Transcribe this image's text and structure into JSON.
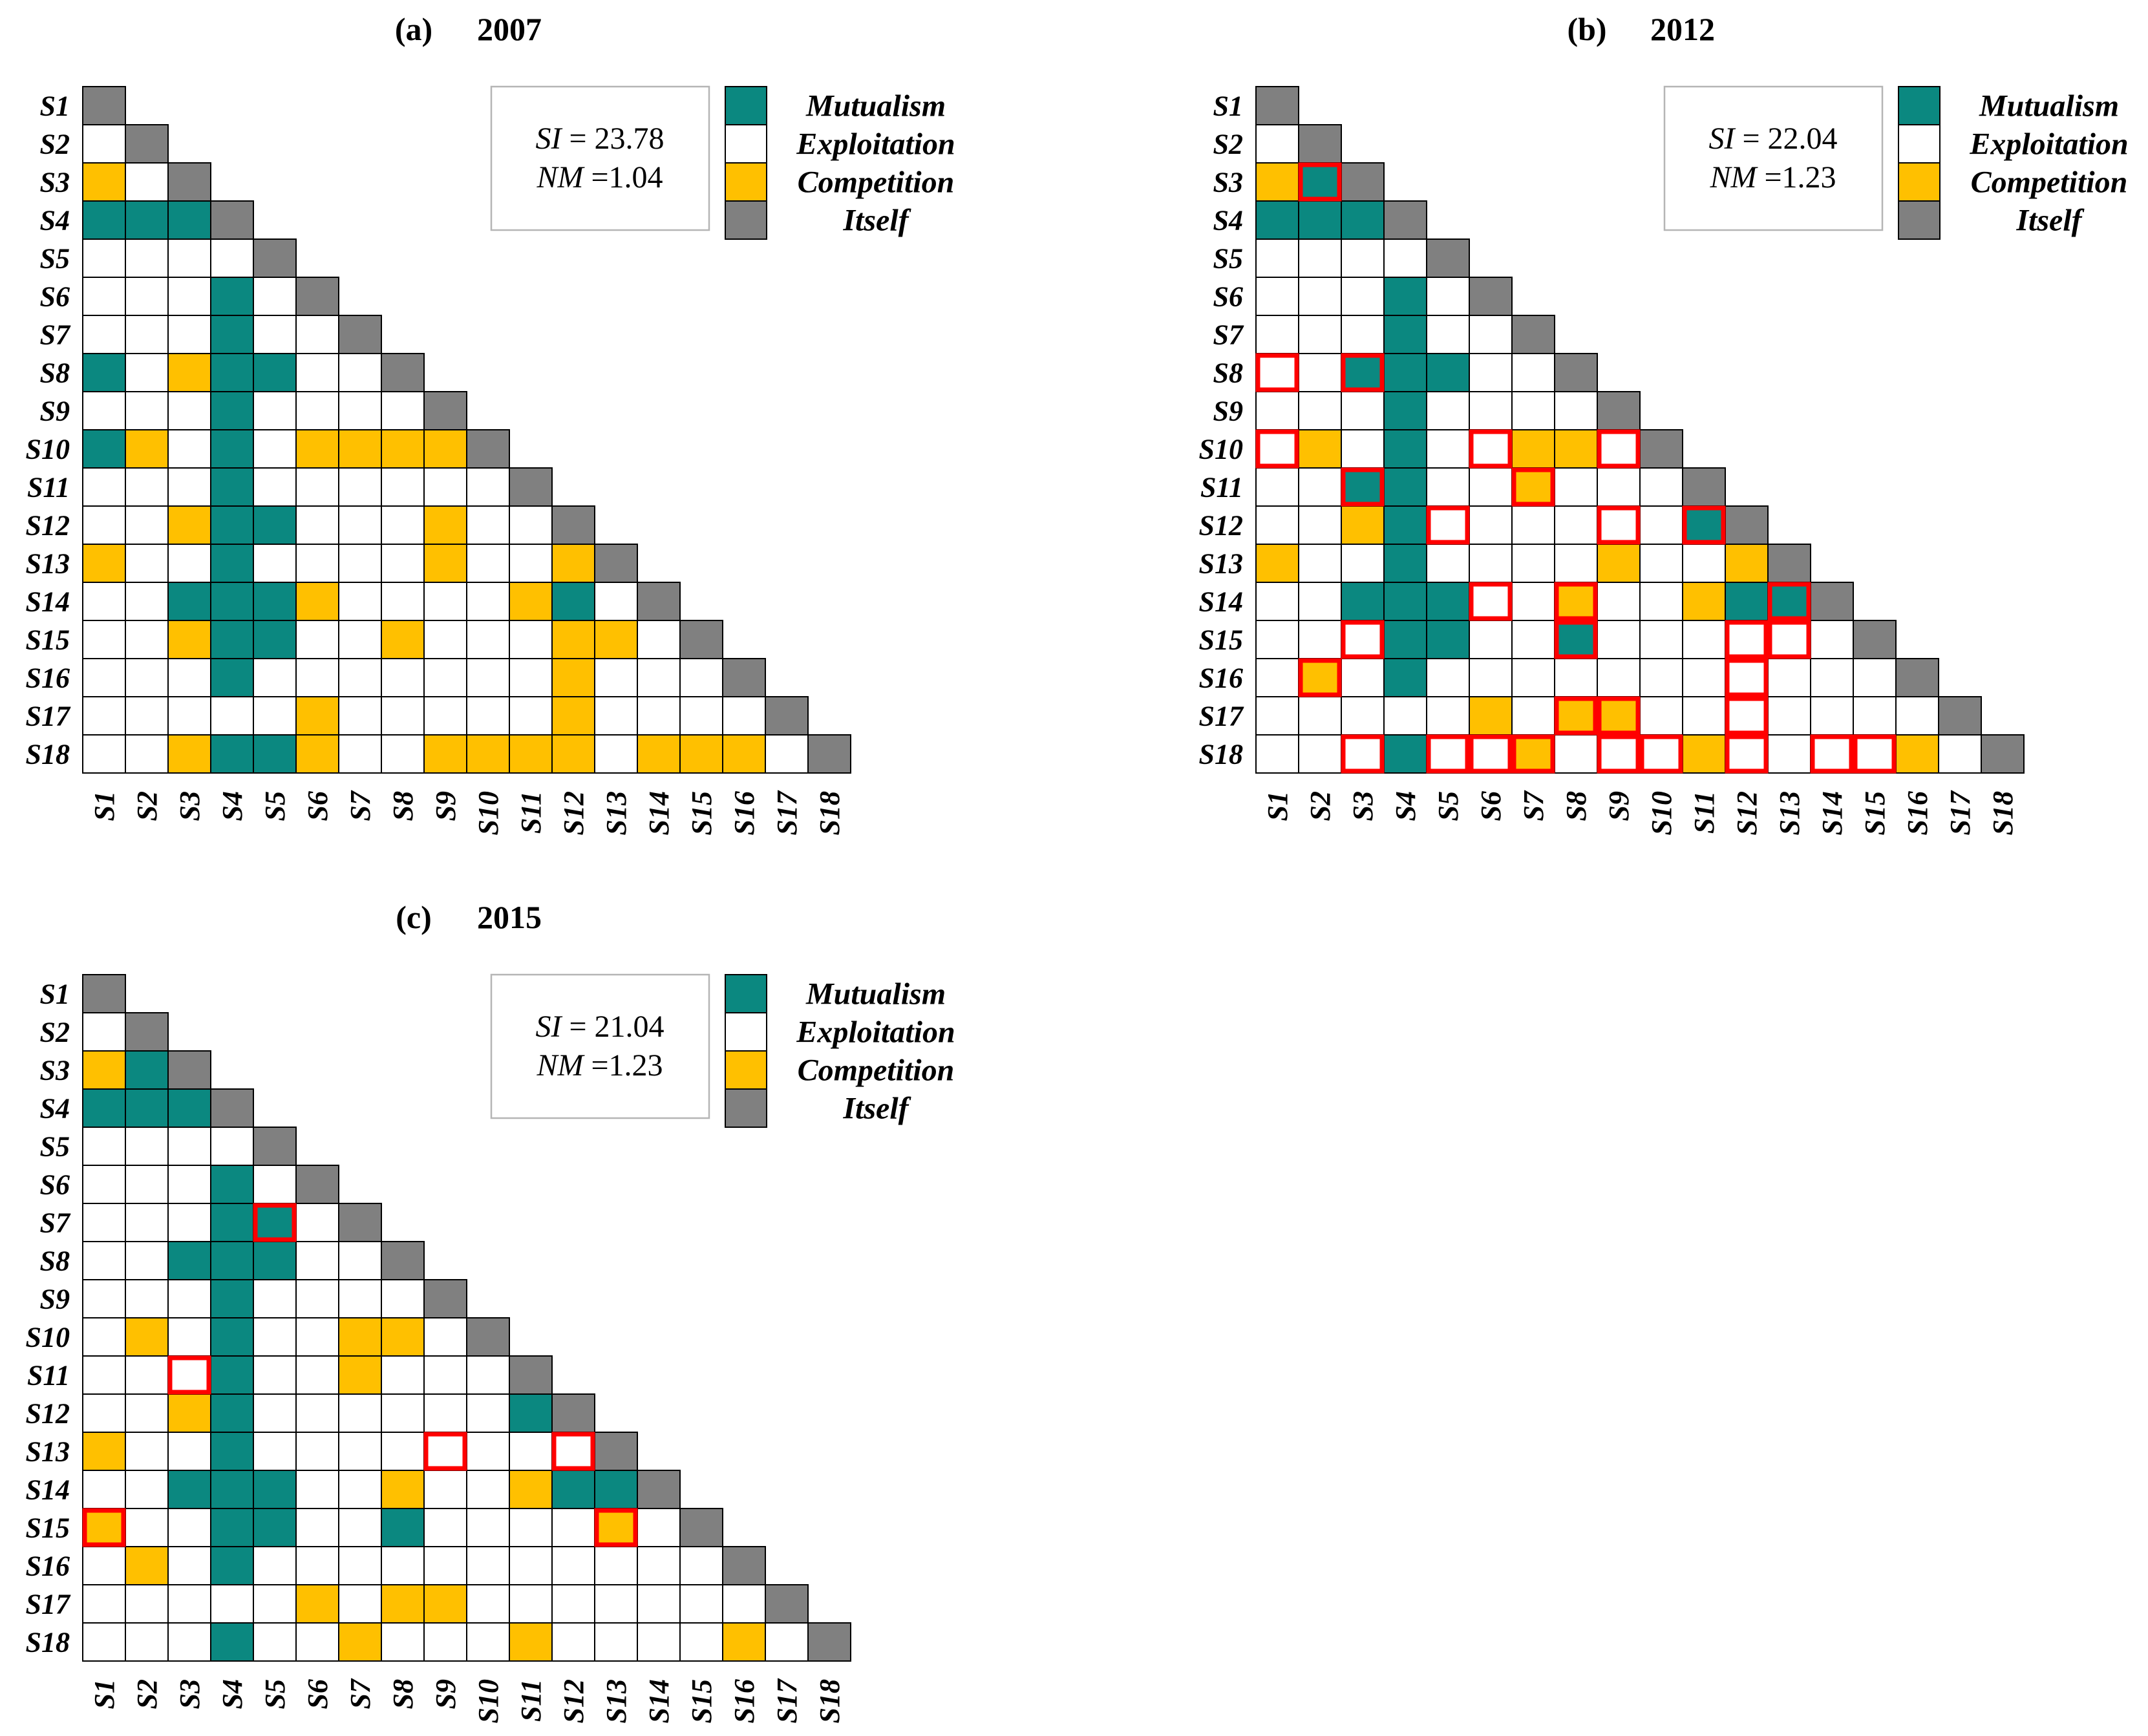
{
  "chart_data": {
    "type": "heatmap",
    "species": [
      "S1",
      "S2",
      "S3",
      "S4",
      "S5",
      "S6",
      "S7",
      "S8",
      "S9",
      "S10",
      "S11",
      "S12",
      "S13",
      "S14",
      "S15",
      "S16",
      "S17",
      "S18"
    ],
    "legend": [
      {
        "label": "Mutualism",
        "color": "#0b8880"
      },
      {
        "label": "Exploitation",
        "color": "#ffffff"
      },
      {
        "label": "Competition",
        "color": "#ffc000"
      },
      {
        "label": "Itself",
        "color": "#808080"
      }
    ],
    "highlight_color": "#ff0000",
    "panels": [
      {
        "label": "(a)",
        "year": "2007",
        "si": {
          "symbol": "SI",
          "text": " = 23.78"
        },
        "nm": {
          "symbol": "NM",
          "text": " =1.04"
        },
        "matrix": [
          [
            3
          ],
          [
            1,
            3
          ],
          [
            2,
            1,
            3
          ],
          [
            0,
            0,
            0,
            3
          ],
          [
            1,
            1,
            1,
            1,
            3
          ],
          [
            1,
            1,
            1,
            0,
            1,
            3
          ],
          [
            1,
            1,
            1,
            0,
            1,
            1,
            3
          ],
          [
            0,
            1,
            2,
            0,
            0,
            1,
            1,
            3
          ],
          [
            1,
            1,
            1,
            0,
            1,
            1,
            1,
            1,
            3
          ],
          [
            0,
            2,
            1,
            0,
            1,
            2,
            2,
            2,
            2,
            3
          ],
          [
            1,
            1,
            1,
            0,
            1,
            1,
            1,
            1,
            1,
            1,
            3
          ],
          [
            1,
            1,
            2,
            0,
            0,
            1,
            1,
            1,
            2,
            1,
            1,
            3
          ],
          [
            2,
            1,
            1,
            0,
            1,
            1,
            1,
            1,
            2,
            1,
            1,
            2,
            3
          ],
          [
            1,
            1,
            0,
            0,
            0,
            2,
            1,
            1,
            1,
            1,
            2,
            0,
            1,
            3
          ],
          [
            1,
            1,
            2,
            0,
            0,
            1,
            1,
            2,
            1,
            1,
            1,
            2,
            2,
            1,
            3
          ],
          [
            1,
            1,
            1,
            0,
            1,
            1,
            1,
            1,
            1,
            1,
            1,
            2,
            1,
            1,
            1,
            3
          ],
          [
            1,
            1,
            1,
            1,
            1,
            2,
            1,
            1,
            1,
            1,
            1,
            2,
            1,
            1,
            1,
            1,
            3
          ],
          [
            1,
            1,
            2,
            0,
            0,
            2,
            1,
            1,
            2,
            2,
            2,
            2,
            1,
            2,
            2,
            2,
            1,
            3
          ]
        ],
        "highlighted": []
      },
      {
        "label": "(b)",
        "year": "2012",
        "si": {
          "symbol": "SI",
          "text": " = 22.04"
        },
        "nm": {
          "symbol": "NM",
          "text": " =1.23"
        },
        "matrix": [
          [
            3
          ],
          [
            1,
            3
          ],
          [
            2,
            0,
            3
          ],
          [
            0,
            0,
            0,
            3
          ],
          [
            1,
            1,
            1,
            1,
            3
          ],
          [
            1,
            1,
            1,
            0,
            1,
            3
          ],
          [
            1,
            1,
            1,
            0,
            1,
            1,
            3
          ],
          [
            1,
            1,
            0,
            0,
            0,
            1,
            1,
            3
          ],
          [
            1,
            1,
            1,
            0,
            1,
            1,
            1,
            1,
            3
          ],
          [
            1,
            2,
            1,
            0,
            1,
            1,
            2,
            2,
            1,
            3
          ],
          [
            1,
            1,
            0,
            0,
            1,
            1,
            2,
            1,
            1,
            1,
            3
          ],
          [
            1,
            1,
            2,
            0,
            1,
            1,
            1,
            1,
            1,
            1,
            0,
            3
          ],
          [
            2,
            1,
            1,
            0,
            1,
            1,
            1,
            1,
            2,
            1,
            1,
            2,
            3
          ],
          [
            1,
            1,
            0,
            0,
            0,
            1,
            1,
            2,
            1,
            1,
            2,
            0,
            0,
            3
          ],
          [
            1,
            1,
            1,
            0,
            0,
            1,
            1,
            0,
            1,
            1,
            1,
            1,
            1,
            1,
            3
          ],
          [
            1,
            2,
            1,
            0,
            1,
            1,
            1,
            1,
            1,
            1,
            1,
            1,
            1,
            1,
            1,
            3
          ],
          [
            1,
            1,
            1,
            1,
            1,
            2,
            1,
            2,
            2,
            1,
            1,
            1,
            1,
            1,
            1,
            1,
            3
          ],
          [
            1,
            1,
            1,
            0,
            1,
            1,
            2,
            1,
            1,
            1,
            2,
            1,
            1,
            1,
            1,
            2,
            1,
            3
          ]
        ],
        "highlighted": [
          [
            "S3",
            "S2"
          ],
          [
            "S8",
            "S1"
          ],
          [
            "S8",
            "S3"
          ],
          [
            "S10",
            "S1"
          ],
          [
            "S10",
            "S6"
          ],
          [
            "S10",
            "S9"
          ],
          [
            "S11",
            "S3"
          ],
          [
            "S11",
            "S7"
          ],
          [
            "S12",
            "S5"
          ],
          [
            "S12",
            "S9"
          ],
          [
            "S12",
            "S11"
          ],
          [
            "S14",
            "S6"
          ],
          [
            "S14",
            "S8"
          ],
          [
            "S14",
            "S13"
          ],
          [
            "S15",
            "S3"
          ],
          [
            "S15",
            "S8"
          ],
          [
            "S15",
            "S12"
          ],
          [
            "S15",
            "S13"
          ],
          [
            "S16",
            "S2"
          ],
          [
            "S16",
            "S12"
          ],
          [
            "S17",
            "S8"
          ],
          [
            "S17",
            "S9"
          ],
          [
            "S17",
            "S12"
          ],
          [
            "S18",
            "S3"
          ],
          [
            "S18",
            "S5"
          ],
          [
            "S18",
            "S6"
          ],
          [
            "S18",
            "S7"
          ],
          [
            "S18",
            "S9"
          ],
          [
            "S18",
            "S10"
          ],
          [
            "S18",
            "S12"
          ],
          [
            "S18",
            "S14"
          ],
          [
            "S18",
            "S15"
          ]
        ]
      },
      {
        "label": "(c)",
        "year": "2015",
        "si": {
          "symbol": "SI",
          "text": " = 21.04"
        },
        "nm": {
          "symbol": "NM",
          "text": " =1.23"
        },
        "matrix": [
          [
            3
          ],
          [
            1,
            3
          ],
          [
            2,
            0,
            3
          ],
          [
            0,
            0,
            0,
            3
          ],
          [
            1,
            1,
            1,
            1,
            3
          ],
          [
            1,
            1,
            1,
            0,
            1,
            3
          ],
          [
            1,
            1,
            1,
            0,
            0,
            1,
            3
          ],
          [
            1,
            1,
            0,
            0,
            0,
            1,
            1,
            3
          ],
          [
            1,
            1,
            1,
            0,
            1,
            1,
            1,
            1,
            3
          ],
          [
            1,
            2,
            1,
            0,
            1,
            1,
            2,
            2,
            1,
            3
          ],
          [
            1,
            1,
            1,
            0,
            1,
            1,
            2,
            1,
            1,
            1,
            3
          ],
          [
            1,
            1,
            2,
            0,
            1,
            1,
            1,
            1,
            1,
            1,
            0,
            3
          ],
          [
            2,
            1,
            1,
            0,
            1,
            1,
            1,
            1,
            1,
            1,
            1,
            1,
            3
          ],
          [
            1,
            1,
            0,
            0,
            0,
            1,
            1,
            2,
            1,
            1,
            2,
            0,
            0,
            3
          ],
          [
            2,
            1,
            1,
            0,
            0,
            1,
            1,
            0,
            1,
            1,
            1,
            1,
            2,
            1,
            3
          ],
          [
            1,
            2,
            1,
            0,
            1,
            1,
            1,
            1,
            1,
            1,
            1,
            1,
            1,
            1,
            1,
            3
          ],
          [
            1,
            1,
            1,
            1,
            1,
            2,
            1,
            2,
            2,
            1,
            1,
            1,
            1,
            1,
            1,
            1,
            3
          ],
          [
            1,
            1,
            1,
            0,
            1,
            1,
            2,
            1,
            1,
            1,
            2,
            1,
            1,
            1,
            1,
            2,
            1,
            3
          ]
        ],
        "highlighted": [
          [
            "S7",
            "S5"
          ],
          [
            "S11",
            "S3"
          ],
          [
            "S13",
            "S9"
          ],
          [
            "S13",
            "S12"
          ],
          [
            "S15",
            "S1"
          ],
          [
            "S15",
            "S13"
          ]
        ]
      }
    ]
  }
}
